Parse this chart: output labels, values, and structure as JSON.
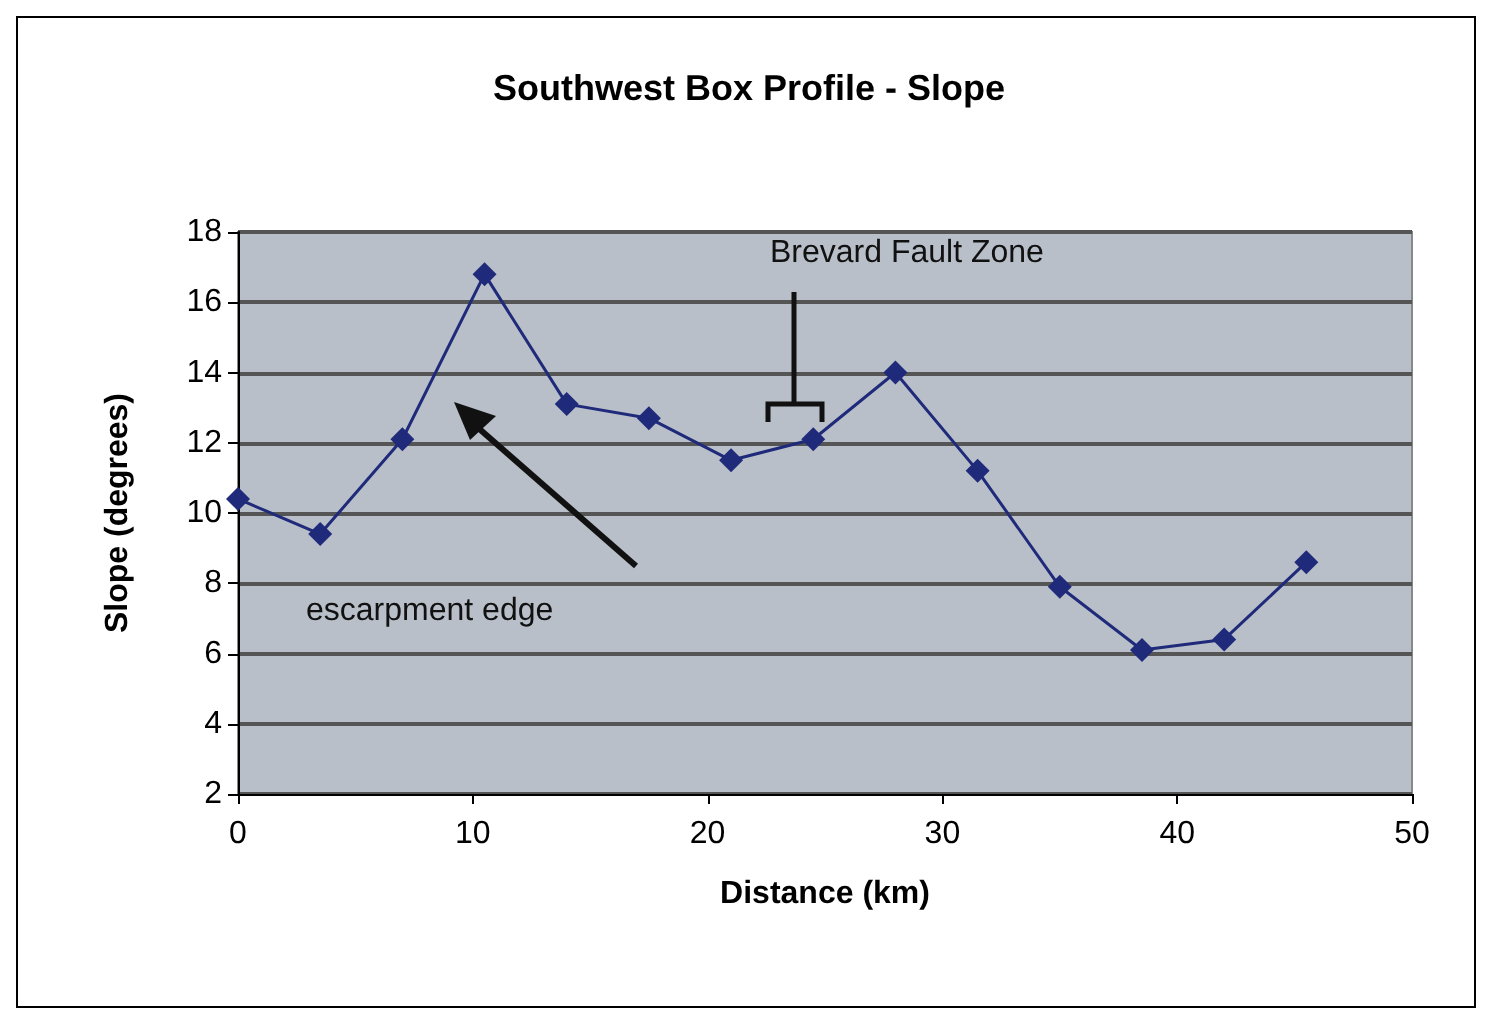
{
  "chart_data": {
    "type": "line",
    "title": "Southwest Box Profile - Slope",
    "xlabel": "Distance (km)",
    "ylabel": "Slope (degrees)",
    "x": [
      0,
      3.5,
      7,
      10.5,
      14,
      17.5,
      21,
      24.5,
      28,
      31.5,
      35,
      38.5,
      42,
      45.5
    ],
    "series": [
      {
        "color": "#1f2a7a",
        "values": [
          10.4,
          9.4,
          12.1,
          16.8,
          13.1,
          12.7,
          11.5,
          12.1,
          14.0,
          11.2,
          7.9,
          6.1,
          6.4,
          8.6
        ]
      }
    ],
    "xlim": [
      0,
      50
    ],
    "xticks": [
      0,
      10,
      20,
      30,
      40,
      50
    ],
    "ylim": [
      2,
      18
    ],
    "yticks": [
      2,
      4,
      6,
      8,
      10,
      12,
      14,
      16,
      18
    ],
    "grid": "y",
    "marker": "diamond",
    "line_style": "solid",
    "annotations": [
      "escarpment edge",
      "Brevard Fault Zone"
    ]
  }
}
